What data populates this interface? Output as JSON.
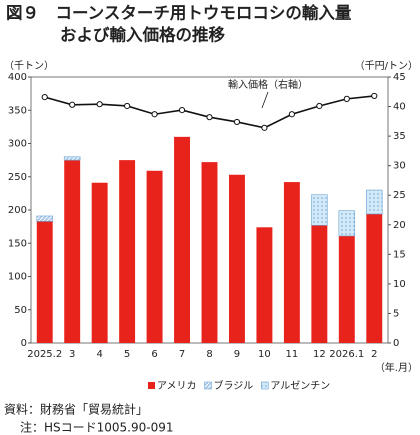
{
  "chart_data": {
    "type": "bar",
    "title": [
      "図９　コーンスターチ用トウモロコシの輸入量",
      "および輸入価格の推移"
    ],
    "y_label": "（千トン）",
    "y2_label": "（千円/トン）",
    "x_label": "（年.月）",
    "categories": [
      "2025.2",
      "3",
      "4",
      "5",
      "6",
      "7",
      "8",
      "9",
      "10",
      "11",
      "12",
      "2026.1",
      "2"
    ],
    "series": [
      {
        "name": "アメリカ",
        "color": "#e8231b",
        "values": [
          183,
          275,
          241,
          275,
          259,
          310,
          272,
          253,
          174,
          242,
          177,
          161,
          194
        ]
      },
      {
        "name": "ブラジル",
        "color": "#a9c9e8",
        "values": [
          8,
          5,
          null,
          null,
          null,
          null,
          null,
          null,
          null,
          null,
          null,
          null,
          null
        ]
      },
      {
        "name": "アルゼンチン",
        "color": "#d3e9f7",
        "values": [
          null,
          null,
          null,
          null,
          null,
          null,
          null,
          null,
          null,
          null,
          46,
          38,
          36
        ]
      },
      {
        "name": "輸入価格（右軸）",
        "type": "line",
        "axis": "y2",
        "color": "#111111",
        "values": [
          41.6,
          40.3,
          40.4,
          40.1,
          38.7,
          39.4,
          38.2,
          37.4,
          36.4,
          38.7,
          40.1,
          41.3,
          41.8
        ]
      }
    ],
    "ylim": [
      0,
      400
    ],
    "yticks": [
      0,
      50,
      100,
      150,
      200,
      250,
      300,
      350,
      400
    ],
    "y2lim": [
      0,
      45
    ],
    "y2ticks": [
      0,
      5,
      10,
      15,
      20,
      25,
      30,
      35,
      40,
      45
    ],
    "legend": "bottom",
    "source": "資料：財務省「貿易統計」",
    "note": "注：HSコード1005.90-091"
  }
}
